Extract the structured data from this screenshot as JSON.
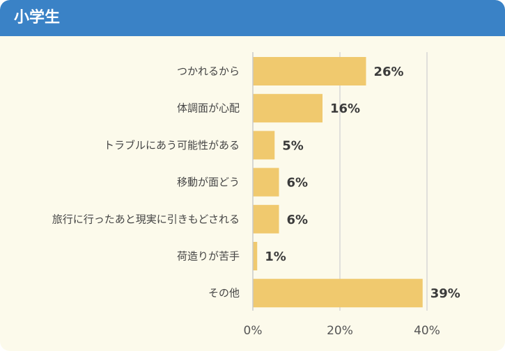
{
  "header": {
    "title": "小学生"
  },
  "colors": {
    "bar": "#f0c96e",
    "grid": "#d6d6d6",
    "axis": "#c9c9c9",
    "header": "#3a82c6",
    "background": "#fcfaeb"
  },
  "chart_data": {
    "type": "bar",
    "orientation": "horizontal",
    "title": "小学生",
    "categories": [
      "つかれるから",
      "体調面が心配",
      "トラブルにあう可能性がある",
      "移動が面どう",
      "旅行に行ったあと現実に引きもどされる",
      "荷造りが苦手",
      "その他"
    ],
    "values": [
      26,
      16,
      5,
      6,
      6,
      1,
      39
    ],
    "value_labels": [
      "26%",
      "16%",
      "5%",
      "6%",
      "6%",
      "1%",
      "39%"
    ],
    "xlim": [
      0,
      40
    ],
    "xticks": [
      0,
      20,
      40
    ],
    "xtick_labels": [
      "0%",
      "20%",
      "40%"
    ],
    "grid": true
  }
}
